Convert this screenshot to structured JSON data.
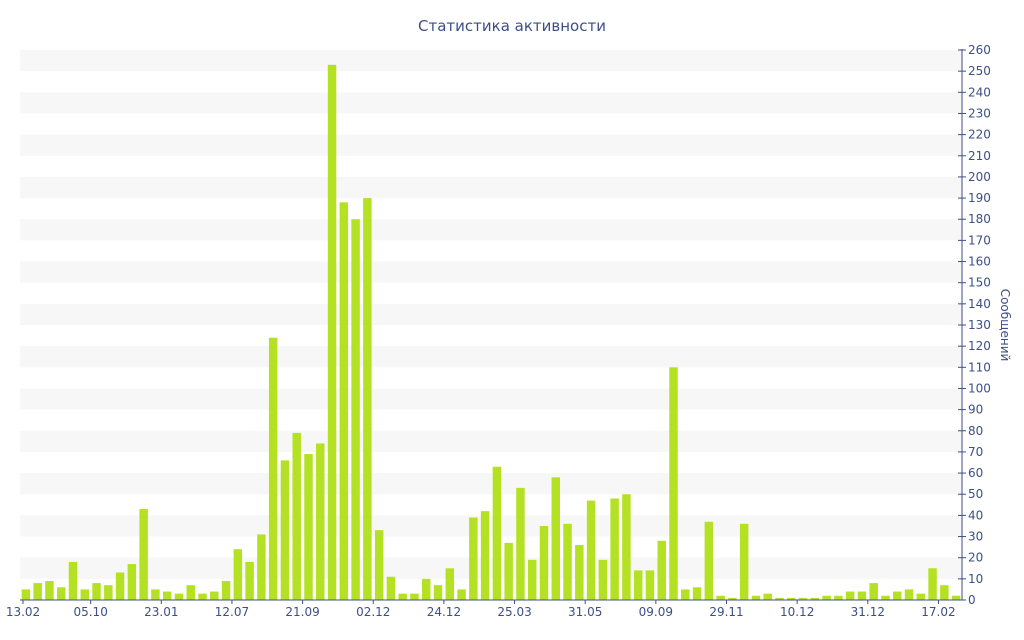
{
  "chart_data": {
    "type": "bar",
    "title": "Статистика активности",
    "xlabel": "",
    "ylabel": "Сообщений",
    "ylim": [
      0,
      260
    ],
    "y_ticks": [
      0,
      10,
      20,
      30,
      40,
      50,
      60,
      70,
      80,
      90,
      100,
      110,
      120,
      130,
      140,
      150,
      160,
      170,
      180,
      190,
      200,
      210,
      220,
      230,
      240,
      250,
      260
    ],
    "y_axis_side": "right",
    "x_tick_labels": [
      {
        "index": 0,
        "label": "13.02"
      },
      {
        "index": 6,
        "label": "05.10"
      },
      {
        "index": 12,
        "label": "23.01"
      },
      {
        "index": 18,
        "label": "12.07"
      },
      {
        "index": 24,
        "label": "21.09"
      },
      {
        "index": 30,
        "label": "02.12"
      },
      {
        "index": 36,
        "label": "24.12"
      },
      {
        "index": 42,
        "label": "25.03"
      },
      {
        "index": 48,
        "label": "31.05"
      },
      {
        "index": 54,
        "label": "09.09"
      },
      {
        "index": 60,
        "label": "29.11"
      },
      {
        "index": 66,
        "label": "10.12"
      },
      {
        "index": 72,
        "label": "31.12"
      },
      {
        "index": 78,
        "label": "17.02"
      }
    ],
    "values": [
      5,
      8,
      9,
      6,
      18,
      5,
      8,
      7,
      13,
      17,
      43,
      5,
      4,
      3,
      7,
      3,
      4,
      9,
      24,
      18,
      31,
      124,
      66,
      79,
      69,
      74,
      253,
      188,
      180,
      190,
      33,
      11,
      3,
      3,
      10,
      7,
      15,
      5,
      39,
      42,
      63,
      27,
      53,
      19,
      35,
      58,
      36,
      26,
      47,
      19,
      48,
      50,
      14,
      14,
      28,
      110,
      5,
      6,
      37,
      2,
      1,
      36,
      2,
      3,
      1,
      1,
      1,
      1,
      2,
      2,
      4,
      4,
      8,
      2,
      4,
      5,
      3,
      15,
      7,
      2
    ],
    "grid": true,
    "grid_style": "alternating horizontal bands",
    "legend": "none",
    "colors": {
      "bar": "#b5e125",
      "text": "#3d4f86",
      "band": "#f7f7f7",
      "axis": "#3d4f86"
    }
  }
}
